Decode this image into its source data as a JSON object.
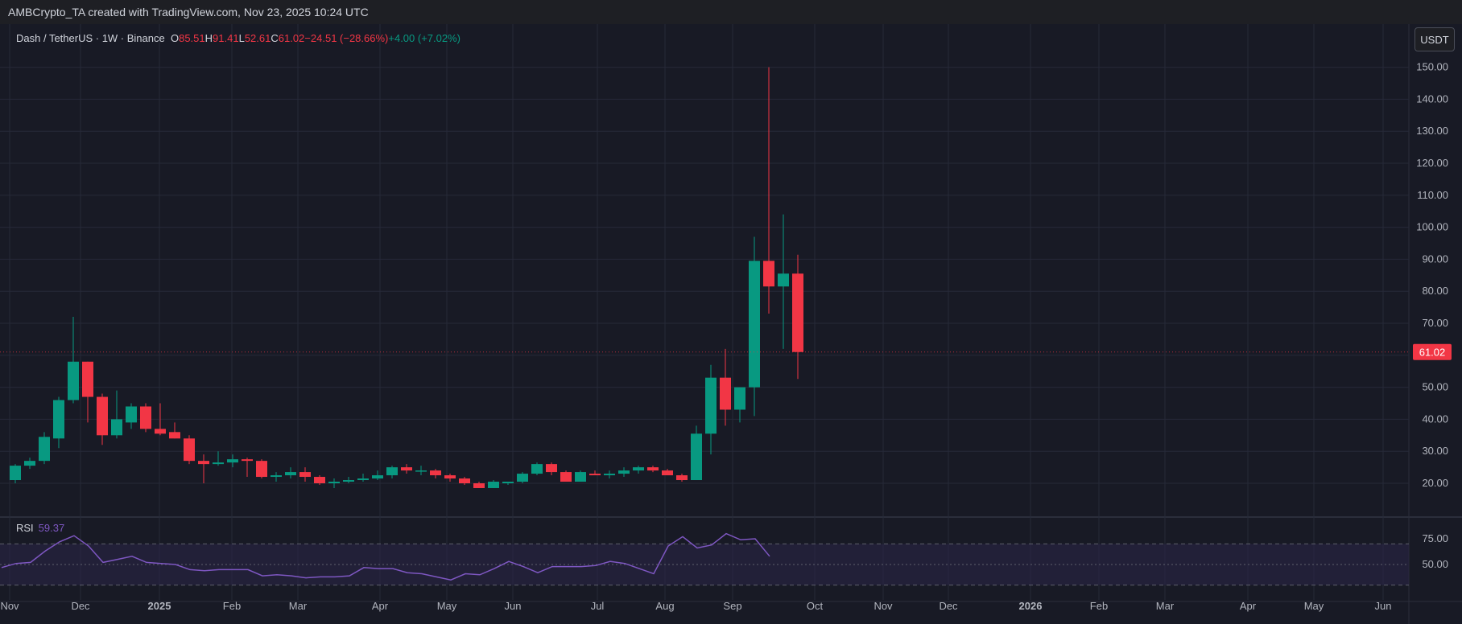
{
  "header": {
    "attribution": "AMBCrypto_TA created with TradingView.com, Nov 23, 2025 10:24 UTC"
  },
  "legend": {
    "symbol": "Dash / TetherUS · 1W · Binance",
    "o_label": "O",
    "o_value": "85.51",
    "h_label": "H",
    "h_value": "91.41",
    "l_label": "L",
    "l_value": "52.61",
    "c_label": "C",
    "c_value": "61.02",
    "change": "−24.51 (−28.66%)",
    "extra": "+4.00 (+7.02%)"
  },
  "currency_button": "USDT",
  "rsi": {
    "name": "RSI",
    "value": "59.37"
  },
  "colors": {
    "background": "#181a25",
    "up": "#089981",
    "down": "#f23645",
    "rsi_line": "#7e57c2",
    "rsi_band": "#2a2546",
    "grid": "#262938",
    "axis_text": "#b2b5be"
  },
  "chart_data": [
    {
      "type": "candlestick",
      "title": "Dash / TetherUS · 1W · Binance",
      "x_axis_labels": [
        "Nov",
        "Dec",
        "2025",
        "Feb",
        "Mar",
        "Apr",
        "May",
        "Jun",
        "Jul",
        "Aug",
        "Sep",
        "Oct",
        "Nov",
        "Dec",
        "2026",
        "Feb",
        "Mar",
        "Apr",
        "May",
        "Jun"
      ],
      "y_ticks": [
        "20.00",
        "30.00",
        "40.00",
        "50.00",
        "60.00",
        "70.00",
        "80.00",
        "90.00",
        "100.00",
        "110.00",
        "120.00",
        "130.00",
        "140.00",
        "150.00"
      ],
      "ylim": [
        15,
        160
      ],
      "last_price_label": "61.02",
      "last_price": 61.02,
      "grid": true,
      "candles": [
        {
          "o": 21,
          "h": 26,
          "l": 20,
          "c": 25.5
        },
        {
          "o": 25.5,
          "h": 28,
          "l": 24.5,
          "c": 27
        },
        {
          "o": 27,
          "h": 36,
          "l": 26,
          "c": 34.5
        },
        {
          "o": 34,
          "h": 47,
          "l": 31,
          "c": 46
        },
        {
          "o": 46,
          "h": 72,
          "l": 45,
          "c": 58
        },
        {
          "o": 58,
          "h": 58,
          "l": 39,
          "c": 47
        },
        {
          "o": 47,
          "h": 48,
          "l": 32,
          "c": 35
        },
        {
          "o": 35,
          "h": 49,
          "l": 34,
          "c": 40
        },
        {
          "o": 39,
          "h": 45,
          "l": 37,
          "c": 44
        },
        {
          "o": 44,
          "h": 45,
          "l": 36,
          "c": 37
        },
        {
          "o": 37,
          "h": 45,
          "l": 35,
          "c": 35.5
        },
        {
          "o": 36,
          "h": 39,
          "l": 34,
          "c": 34
        },
        {
          "o": 34,
          "h": 35,
          "l": 26,
          "c": 27
        },
        {
          "o": 27,
          "h": 29,
          "l": 20,
          "c": 26
        },
        {
          "o": 26,
          "h": 30,
          "l": 25.5,
          "c": 26.5
        },
        {
          "o": 26.5,
          "h": 29,
          "l": 25,
          "c": 27.5
        },
        {
          "o": 27.5,
          "h": 28,
          "l": 22,
          "c": 27
        },
        {
          "o": 27,
          "h": 27.5,
          "l": 21.5,
          "c": 22
        },
        {
          "o": 22,
          "h": 23.5,
          "l": 20.5,
          "c": 22.5
        },
        {
          "o": 22.5,
          "h": 25,
          "l": 21.5,
          "c": 23.5
        },
        {
          "o": 23.5,
          "h": 25,
          "l": 20.5,
          "c": 22
        },
        {
          "o": 22,
          "h": 22.5,
          "l": 19.5,
          "c": 20
        },
        {
          "o": 20,
          "h": 21.5,
          "l": 18.5,
          "c": 20.5
        },
        {
          "o": 20.5,
          "h": 22,
          "l": 20,
          "c": 21
        },
        {
          "o": 21,
          "h": 23,
          "l": 20.5,
          "c": 21.5
        },
        {
          "o": 21.5,
          "h": 24,
          "l": 21,
          "c": 22.5
        },
        {
          "o": 22.5,
          "h": 25.5,
          "l": 21.5,
          "c": 25
        },
        {
          "o": 25,
          "h": 26,
          "l": 23,
          "c": 24
        },
        {
          "o": 24,
          "h": 25.5,
          "l": 22.5,
          "c": 24
        },
        {
          "o": 24,
          "h": 24.5,
          "l": 21.5,
          "c": 22.5
        },
        {
          "o": 22.5,
          "h": 23,
          "l": 20.5,
          "c": 21.5
        },
        {
          "o": 21.5,
          "h": 22,
          "l": 19.5,
          "c": 20
        },
        {
          "o": 20,
          "h": 20.5,
          "l": 18.5,
          "c": 18.5
        },
        {
          "o": 18.5,
          "h": 21,
          "l": 18.5,
          "c": 20.5
        },
        {
          "o": 20,
          "h": 20.5,
          "l": 19.5,
          "c": 20.5
        },
        {
          "o": 20.5,
          "h": 23.5,
          "l": 20,
          "c": 23
        },
        {
          "o": 23,
          "h": 26.5,
          "l": 22.5,
          "c": 26
        },
        {
          "o": 26,
          "h": 26.5,
          "l": 22.5,
          "c": 23.5
        },
        {
          "o": 23.5,
          "h": 24,
          "l": 20.5,
          "c": 20.5
        },
        {
          "o": 20.5,
          "h": 24,
          "l": 20.5,
          "c": 23.5
        },
        {
          "o": 23,
          "h": 24,
          "l": 22.5,
          "c": 22.5
        },
        {
          "o": 22.5,
          "h": 24,
          "l": 21.5,
          "c": 23
        },
        {
          "o": 23,
          "h": 25,
          "l": 22,
          "c": 24
        },
        {
          "o": 24,
          "h": 25.5,
          "l": 23,
          "c": 25
        },
        {
          "o": 25,
          "h": 25.5,
          "l": 23.5,
          "c": 24
        },
        {
          "o": 24,
          "h": 24.5,
          "l": 22.5,
          "c": 22.5
        },
        {
          "o": 22.5,
          "h": 23,
          "l": 20.5,
          "c": 21
        },
        {
          "o": 21,
          "h": 38,
          "l": 21,
          "c": 35.5
        },
        {
          "o": 35.5,
          "h": 57,
          "l": 29,
          "c": 53
        },
        {
          "o": 53,
          "h": 62,
          "l": 38,
          "c": 43
        },
        {
          "o": 43,
          "h": 50,
          "l": 39,
          "c": 50
        },
        {
          "o": 50,
          "h": 97,
          "l": 41,
          "c": 89.5
        },
        {
          "o": 89.5,
          "h": 150,
          "l": 73,
          "c": 81.5
        },
        {
          "o": 81.5,
          "h": 104,
          "l": 62,
          "c": 85.51
        },
        {
          "o": 85.51,
          "h": 91.41,
          "l": 52.61,
          "c": 61.02
        }
      ]
    },
    {
      "type": "line",
      "title": "RSI",
      "y_ticks": [
        "50.00",
        "75.00"
      ],
      "ylim": [
        25,
        85
      ],
      "bands": [
        30,
        50,
        70
      ],
      "series": [
        {
          "values": [
            47,
            51,
            52,
            63,
            72,
            78,
            68,
            52,
            55,
            58,
            52,
            51,
            50,
            45,
            44,
            45,
            45,
            45,
            39,
            40,
            39,
            37,
            38,
            38,
            39,
            47,
            46,
            46,
            42,
            41,
            38,
            35,
            41,
            40,
            46,
            53,
            48,
            42,
            48,
            48,
            48,
            49,
            53,
            51,
            46,
            41,
            68,
            77,
            66,
            69,
            80,
            74,
            75,
            58
          ]
        }
      ]
    }
  ]
}
